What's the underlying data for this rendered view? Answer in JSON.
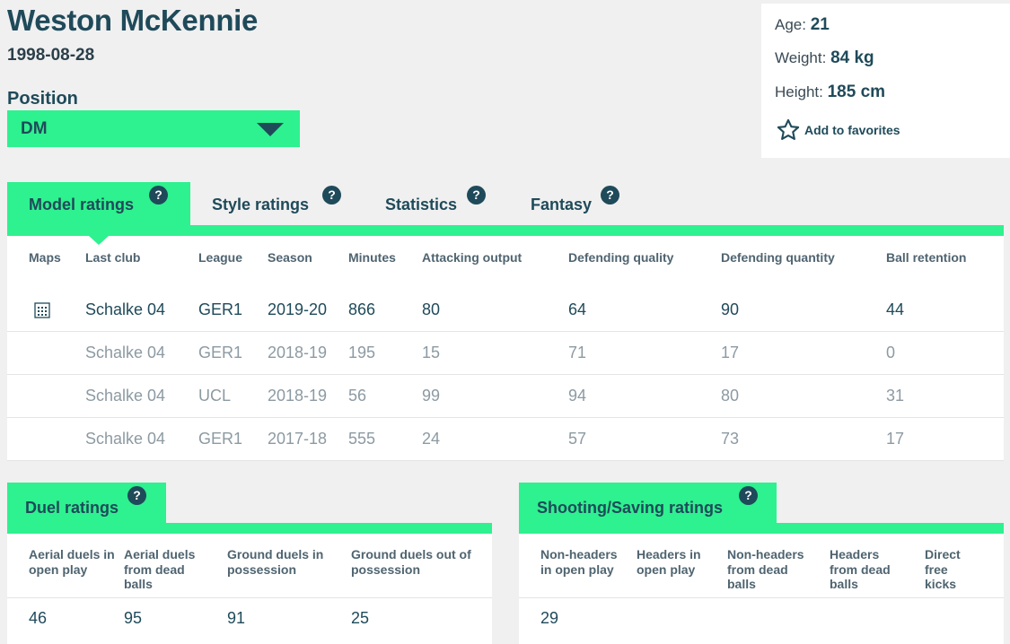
{
  "player": {
    "name": "Weston McKennie",
    "dob": "1998-08-28",
    "position_label": "Position",
    "position_value": "DM"
  },
  "info": {
    "age_label": "Age:",
    "age": "21",
    "weight_label": "Weight:",
    "weight": "84 kg",
    "height_label": "Height:",
    "height": "185 cm",
    "favorites_label": "Add to favorites"
  },
  "tabs": [
    {
      "label": "Model ratings",
      "active": true
    },
    {
      "label": "Style ratings",
      "active": false
    },
    {
      "label": "Statistics",
      "active": false
    },
    {
      "label": "Fantasy",
      "active": false
    }
  ],
  "help_glyph": "?",
  "ratings_table": {
    "headers": [
      "Maps",
      "Last club",
      "League",
      "Season",
      "Minutes",
      "Attacking output",
      "Defending quality",
      "Defending quantity",
      "Ball retention"
    ],
    "rows": [
      {
        "club": "Schalke 04",
        "league": "GER1",
        "season": "2019-20",
        "minutes": "866",
        "attacking": "80",
        "def_quality": "64",
        "def_quantity": "90",
        "retention": "44"
      },
      {
        "club": "Schalke 04",
        "league": "GER1",
        "season": "2018-19",
        "minutes": "195",
        "attacking": "15",
        "def_quality": "71",
        "def_quantity": "17",
        "retention": "0"
      },
      {
        "club": "Schalke 04",
        "league": "UCL",
        "season": "2018-19",
        "minutes": "56",
        "attacking": "99",
        "def_quality": "94",
        "def_quantity": "80",
        "retention": "31"
      },
      {
        "club": "Schalke 04",
        "league": "GER1",
        "season": "2017-18",
        "minutes": "555",
        "attacking": "24",
        "def_quality": "57",
        "def_quantity": "73",
        "retention": "17"
      }
    ]
  },
  "duel": {
    "title": "Duel ratings",
    "headers": [
      "Aerial duels in open play",
      "Aerial duels from dead balls",
      "Ground duels in possession",
      "Ground duels out of possession"
    ],
    "values": [
      "46",
      "95",
      "91",
      "25"
    ]
  },
  "shooting": {
    "title": "Shooting/Saving ratings",
    "headers": [
      "Non-headers in open play",
      "Headers in open play",
      "Non-headers from dead balls",
      "Headers from dead balls",
      "Direct free kicks"
    ],
    "values": [
      "29"
    ]
  },
  "colors": {
    "accent": "#2ef18f",
    "primary_text": "#1f4a5a",
    "muted_text": "#8c9aa2",
    "background": "#f0f0f0"
  },
  "icons": {
    "position_dropdown": "chevron-down-icon",
    "favorites": "star-outline-icon",
    "help": "help-circle-icon",
    "maps": "heatmap-grid-icon"
  }
}
